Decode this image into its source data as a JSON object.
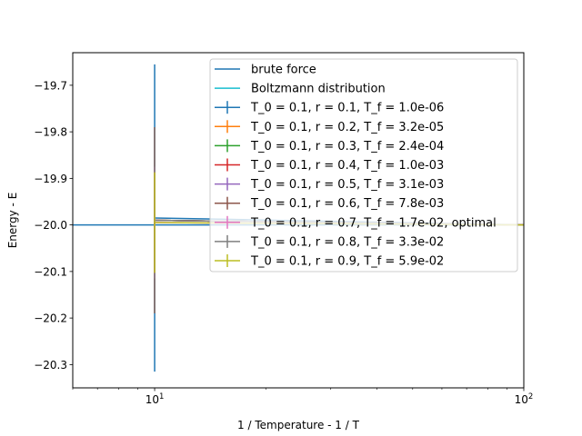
{
  "chart_data": {
    "type": "line",
    "title": "",
    "xlabel": "1 / Temperature - 1 / T",
    "ylabel": "Energy - E",
    "xscale": "log",
    "xlim": [
      6,
      100
    ],
    "ylim": [
      -20.35,
      -19.63
    ],
    "x_ticks": [
      {
        "value": 10,
        "base": "10",
        "exp": "1"
      },
      {
        "value": 100,
        "base": "10",
        "exp": "2"
      }
    ],
    "y_ticks": [
      {
        "value": -19.7,
        "label": "−19.7"
      },
      {
        "value": -19.8,
        "label": "−19.8"
      },
      {
        "value": -19.9,
        "label": "−19.9"
      },
      {
        "value": -20.0,
        "label": "−20.0"
      },
      {
        "value": -20.1,
        "label": "−20.1"
      },
      {
        "value": -20.2,
        "label": "−20.2"
      },
      {
        "value": -20.3,
        "label": "−20.3"
      }
    ],
    "grid": false,
    "legend_position": "top-right",
    "series": [
      {
        "name": "brute force",
        "kind": "line",
        "color": "#1f77b4",
        "x": [
          6,
          100
        ],
        "y": [
          -20.0,
          -20.0
        ]
      },
      {
        "name": "Boltzmann distribution",
        "kind": "line",
        "color": "#17becf",
        "x": [
          10,
          100
        ],
        "y": [
          -19.99,
          -20.0
        ]
      },
      {
        "name": "T_0 = 0.1, r = 0.1, T_f = 1.0e-06",
        "kind": "errorbar",
        "color": "#1f77b4",
        "x": [
          10,
          100
        ],
        "y": [
          -19.985,
          -20.0
        ],
        "err": [
          0.33,
          0.0
        ]
      },
      {
        "name": "T_0 = 0.1, r = 0.2, T_f = 3.2e-05",
        "kind": "errorbar",
        "color": "#ff7f0e",
        "x": [
          10,
          100
        ],
        "y": [
          -19.99,
          -20.0
        ],
        "err": [
          0.2,
          0.0
        ]
      },
      {
        "name": "T_0 = 0.1, r = 0.3, T_f = 2.4e-04",
        "kind": "errorbar",
        "color": "#2ca02c",
        "x": [
          10,
          100
        ],
        "y": [
          -19.99,
          -20.0
        ],
        "err": [
          0.2,
          0.0
        ]
      },
      {
        "name": "T_0 = 0.1, r = 0.4, T_f = 1.0e-03",
        "kind": "errorbar",
        "color": "#d62728",
        "x": [
          10,
          100
        ],
        "y": [
          -19.99,
          -20.0
        ],
        "err": [
          0.2,
          0.0
        ]
      },
      {
        "name": "T_0 = 0.1, r = 0.5, T_f = 3.1e-03",
        "kind": "errorbar",
        "color": "#9467bd",
        "x": [
          10,
          100
        ],
        "y": [
          -19.99,
          -20.0
        ],
        "err": [
          0.2,
          0.0
        ]
      },
      {
        "name": "T_0 = 0.1, r = 0.6, T_f = 7.8e-03",
        "kind": "errorbar",
        "color": "#8c564b",
        "x": [
          10,
          100
        ],
        "y": [
          -19.99,
          -20.0
        ],
        "err": [
          0.2,
          0.0
        ]
      },
      {
        "name": "T_0 = 0.1, r = 0.7, T_f = 1.7e-02, optimal",
        "kind": "errorbar",
        "color": "#e377c2",
        "x": [
          10,
          100
        ],
        "y": [
          -19.995,
          -20.0
        ],
        "err": [
          0.12,
          0.0
        ]
      },
      {
        "name": "T_0 = 0.1, r = 0.8, T_f = 3.3e-02",
        "kind": "errorbar",
        "color": "#7f7f7f",
        "x": [
          10,
          100
        ],
        "y": [
          -19.99,
          -20.0
        ],
        "err": [
          0.2,
          0.0
        ]
      },
      {
        "name": "T_0 = 0.1, r = 0.9, T_f = 5.9e-02",
        "kind": "errorbar",
        "color": "#bcbd22",
        "x": [
          10,
          100
        ],
        "y": [
          -19.995,
          -20.0
        ],
        "err": [
          0.108,
          0.0
        ]
      }
    ]
  }
}
